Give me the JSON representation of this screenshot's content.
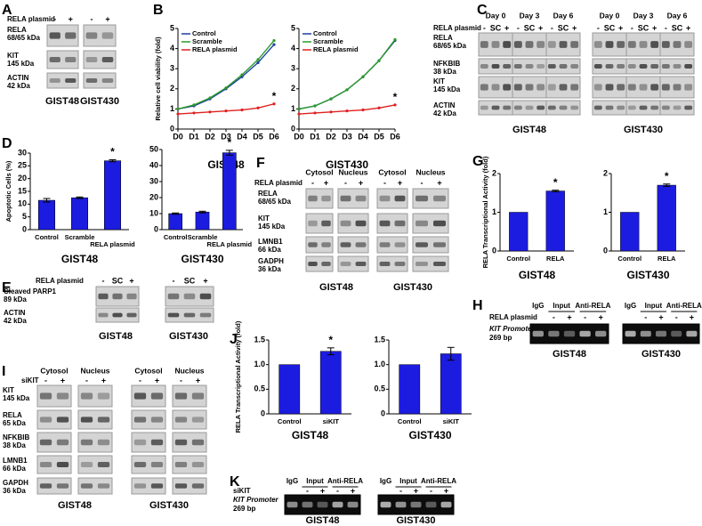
{
  "panel_letters": [
    "A",
    "B",
    "C",
    "D",
    "E",
    "F",
    "G",
    "H",
    "I",
    "J",
    "K"
  ],
  "panel_A": {
    "treatment": "RELA plasmid",
    "lanes": [
      "-",
      "+"
    ],
    "proteins": [
      {
        "name": "RELA",
        "size": "68/65 kDa"
      },
      {
        "name": "KIT",
        "size": "145 kDa"
      },
      {
        "name": "ACTIN",
        "size": "42 kDa"
      }
    ],
    "cell_lines": [
      "GIST48",
      "GIST430"
    ]
  },
  "panel_C": {
    "treatment": "RELA plasmid",
    "days": [
      "Day 0",
      "Day 3",
      "Day 6"
    ],
    "lanes": [
      "-",
      "SC",
      "+"
    ],
    "proteins": [
      {
        "name": "RELA",
        "size": "68/65 kDa"
      },
      {
        "name": "NFKBIB",
        "size": "38 kDa"
      },
      {
        "name": "KIT",
        "size": "145 kDa"
      },
      {
        "name": "ACTIN",
        "size": "42 kDa"
      }
    ],
    "cell_lines": [
      "GIST48",
      "GIST430"
    ]
  },
  "panel_E": {
    "treatment": "RELA plasmid",
    "lanes": [
      "-",
      "SC",
      "+"
    ],
    "proteins": [
      {
        "name": "Cleaved PARP1",
        "size": "89 kDa"
      },
      {
        "name": "ACTIN",
        "size": "42 kDa"
      }
    ],
    "cell_lines": [
      "GIST48",
      "GIST430"
    ]
  },
  "panel_F": {
    "fractions": [
      "Cytosol",
      "Nucleus"
    ],
    "treatment": "RELA plasmid",
    "lanes": [
      "-",
      "+"
    ],
    "proteins": [
      {
        "name": "RELA",
        "size": "68/65 kDa"
      },
      {
        "name": "KIT",
        "size": "145 kDa"
      },
      {
        "name": "LMNB1",
        "size": "66 kDa"
      },
      {
        "name": "GADPH",
        "size": "36 kDa"
      }
    ],
    "cell_lines": [
      "GIST48",
      "GIST430"
    ]
  },
  "panel_H": {
    "groups": [
      "IgG",
      "Input",
      "Anti-RELA"
    ],
    "treatment": "RELA plasmid",
    "lanes": [
      "-",
      "+"
    ],
    "target": "KIT Promoter",
    "size": "269 bp",
    "cell_lines": [
      "GIST48",
      "GIST430"
    ]
  },
  "panel_I": {
    "fractions": [
      "Cytosol",
      "Nucleus"
    ],
    "treatment": "siKIT",
    "lanes": [
      "-",
      "+"
    ],
    "proteins": [
      {
        "name": "KIT",
        "size": "145 kDa"
      },
      {
        "name": "RELA",
        "size": "65 kDa"
      },
      {
        "name": "NFKBIB",
        "size": "38 kDa"
      },
      {
        "name": "LMNB1",
        "size": "66 kDa"
      },
      {
        "name": "GAPDH",
        "size": "36 kDa"
      }
    ],
    "cell_lines": [
      "GIST48",
      "GIST430"
    ]
  },
  "panel_K": {
    "groups": [
      "IgG",
      "Input",
      "Anti-RELA"
    ],
    "treatment": "siKIT",
    "lanes": [
      "-",
      "+"
    ],
    "target": "KIT Promoter",
    "size": "269 bp",
    "cell_lines": [
      "GIST48",
      "GIST430"
    ]
  },
  "chart_data": [
    {
      "type": "line",
      "title": "GIST48",
      "y_label": "Relative cell viability (fold)",
      "categories": [
        "D0",
        "D1",
        "D2",
        "D3",
        "D4",
        "D5",
        "D6"
      ],
      "series": [
        {
          "name": "Control",
          "color": "#1f3fa0",
          "values": [
            1.0,
            1.15,
            1.5,
            2.0,
            2.6,
            3.3,
            4.2
          ]
        },
        {
          "name": "Scramble",
          "color": "#2a9a2a",
          "values": [
            1.0,
            1.2,
            1.55,
            2.05,
            2.7,
            3.45,
            4.4
          ]
        },
        {
          "name": "RELA plasmid",
          "color": "#e02020",
          "values": [
            0.75,
            0.8,
            0.85,
            0.9,
            0.95,
            1.05,
            1.25
          ]
        }
      ],
      "ylim": [
        0,
        5
      ],
      "yticks": [
        0,
        1,
        2,
        3,
        4,
        5
      ],
      "annotations": [
        {
          "text": "*",
          "x": "D6",
          "series": "RELA plasmid"
        }
      ]
    },
    {
      "type": "line",
      "title": "GIST430",
      "categories": [
        "D0",
        "D1",
        "D2",
        "D3",
        "D4",
        "D5",
        "D6"
      ],
      "series": [
        {
          "name": "Control",
          "color": "#1f3fa0",
          "values": [
            1.0,
            1.15,
            1.5,
            1.95,
            2.6,
            3.4,
            4.4
          ]
        },
        {
          "name": "Scramble",
          "color": "#2a9a2a",
          "values": [
            1.0,
            1.15,
            1.5,
            1.95,
            2.6,
            3.4,
            4.45
          ]
        },
        {
          "name": "RELA plasmid",
          "color": "#e02020",
          "values": [
            0.75,
            0.8,
            0.85,
            0.9,
            0.95,
            1.05,
            1.2
          ]
        }
      ],
      "ylim": [
        0,
        5
      ],
      "yticks": [
        0,
        1,
        2,
        3,
        4,
        5
      ],
      "annotations": [
        {
          "text": "*",
          "x": "D6",
          "series": "RELA plasmid"
        }
      ]
    },
    {
      "type": "bar",
      "title": "GIST48",
      "y_label": "Apoptotic Cells (%)",
      "color": "#1c1ce0",
      "categories": [
        "Control",
        "Scramble",
        "RELA plasmid"
      ],
      "values": [
        11.5,
        12.5,
        27
      ],
      "errors": [
        0.7,
        0.3,
        0.4
      ],
      "ylim": [
        0,
        30
      ],
      "yticks": [
        0,
        5,
        10,
        15,
        20,
        25,
        30
      ],
      "annotations": [
        {
          "text": "*",
          "x": "RELA plasmid"
        }
      ]
    },
    {
      "type": "bar",
      "title": "GIST430",
      "color": "#1c1ce0",
      "categories": [
        "Control",
        "Scramble",
        "RELA plasmid"
      ],
      "values": [
        10,
        11,
        48
      ],
      "errors": [
        0.4,
        0.5,
        1.5
      ],
      "ylim": [
        0,
        50
      ],
      "yticks": [
        0,
        10,
        20,
        30,
        40,
        50
      ],
      "annotations": [
        {
          "text": "*",
          "x": "RELA plasmid"
        }
      ]
    },
    {
      "type": "bar",
      "title": "GIST48",
      "y_label": "RELA  Transcriptional Activity (fold)",
      "color": "#1c1ce0",
      "categories": [
        "Control",
        "RELA"
      ],
      "values": [
        1,
        1.55
      ],
      "errors": [
        0,
        0.02
      ],
      "ylim": [
        0,
        2
      ],
      "yticks": [
        0,
        1,
        2
      ],
      "annotations": [
        {
          "text": "*",
          "x": "RELA"
        }
      ]
    },
    {
      "type": "bar",
      "title": "GIST430",
      "color": "#1c1ce0",
      "categories": [
        "Control",
        "RELA"
      ],
      "values": [
        1,
        1.7
      ],
      "errors": [
        0,
        0.03
      ],
      "ylim": [
        0,
        2
      ],
      "yticks": [
        0,
        1,
        2
      ],
      "annotations": [
        {
          "text": "*",
          "x": "RELA"
        }
      ]
    },
    {
      "type": "bar",
      "title": "GIST48",
      "y_label": "RELA  Transcriptional Activity (fold)",
      "color": "#1c1ce0",
      "categories": [
        "Control",
        "siKIT"
      ],
      "values": [
        1,
        1.27
      ],
      "errors": [
        0,
        0.07
      ],
      "ylim": [
        0,
        1.5
      ],
      "yticks": [
        0,
        0.5,
        {
          "value": 1,
          "label": "1.0"
        },
        1.5
      ],
      "annotations": [
        {
          "text": "*",
          "x": "siKIT"
        }
      ]
    },
    {
      "type": "bar",
      "title": "GIST430",
      "color": "#1c1ce0",
      "categories": [
        "Control",
        "siKIT"
      ],
      "values": [
        1,
        1.22
      ],
      "errors": [
        0,
        0.13
      ],
      "ylim": [
        0,
        1.5
      ],
      "yticks": [
        0,
        0.5,
        {
          "value": 1,
          "label": "1.0"
        },
        1.5
      ]
    }
  ]
}
